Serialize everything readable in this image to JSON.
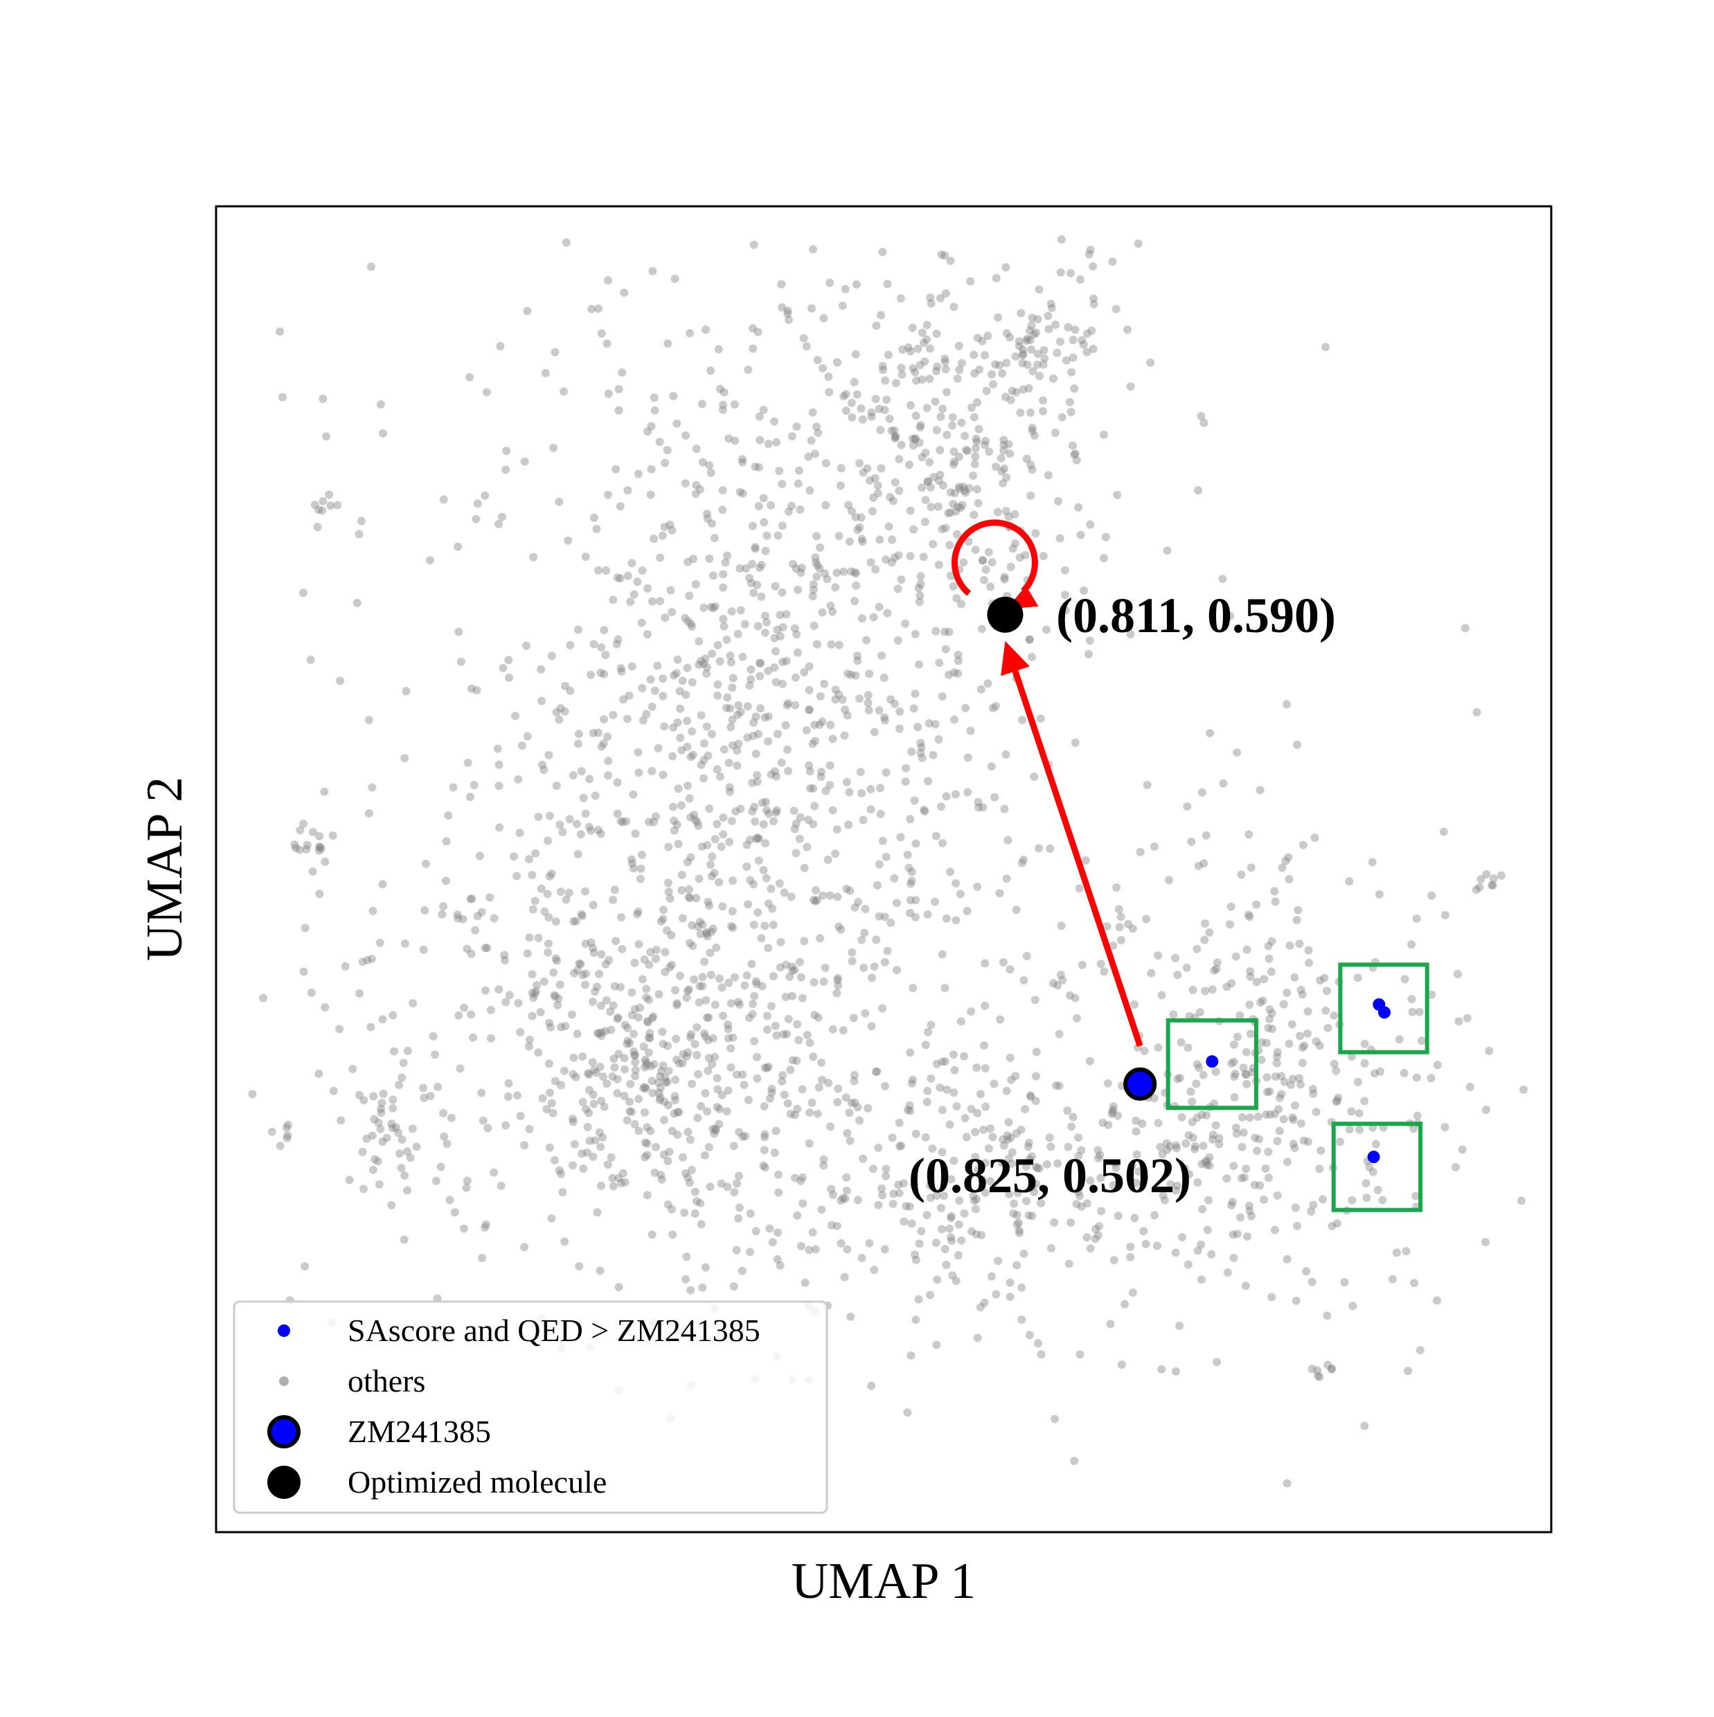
{
  "chart_data": {
    "type": "scatter",
    "title": "",
    "xlabel": "UMAP 1",
    "ylabel": "UMAP 2",
    "axis_ticks": "none",
    "grid": false,
    "legend": {
      "placement": "lower-left",
      "entries": [
        {
          "label": "SAscore and QED > ZM241385",
          "marker": "small-dot",
          "color": "#0000ff"
        },
        {
          "label": "others",
          "marker": "small-dot",
          "color": "#aaaaaa"
        },
        {
          "label": "ZM241385",
          "marker": "large-dot-outlined",
          "color": "#0000ff"
        },
        {
          "label": "Optimized molecule",
          "marker": "large-dot",
          "color": "#000000"
        }
      ]
    },
    "annotations": [
      {
        "text": "(0.811, 0.590)",
        "anchor": "Optimized molecule"
      },
      {
        "text": "(0.825, 0.502)",
        "anchor": "ZM241385"
      }
    ],
    "series": [
      {
        "name": "ZM241385",
        "color": "#0000ff",
        "edge": "#000000",
        "points": [
          [
            0.692,
            0.338
          ]
        ]
      },
      {
        "name": "Optimized molecule",
        "color": "#000000",
        "points": [
          [
            0.591,
            0.692
          ]
        ]
      },
      {
        "name": "SAscore and QED > ZM241385",
        "color": "#0000ff",
        "points": [
          [
            0.746,
            0.355
          ],
          [
            0.875,
            0.392
          ],
          [
            0.871,
            0.398
          ],
          [
            0.867,
            0.283
          ]
        ]
      }
    ],
    "highlight_boxes": [
      {
        "x0": 0.713,
        "y0": 0.32,
        "x1": 0.779,
        "y1": 0.386
      },
      {
        "x0": 0.842,
        "y0": 0.362,
        "x1": 0.907,
        "y1": 0.428
      },
      {
        "x0": 0.837,
        "y0": 0.243,
        "x1": 0.902,
        "y1": 0.308
      }
    ],
    "clusters": [
      {
        "cx": 0.41,
        "cy": 0.64,
        "sx": 0.14,
        "sy": 0.19,
        "n": 900
      },
      {
        "cx": 0.33,
        "cy": 0.37,
        "sx": 0.12,
        "sy": 0.1,
        "n": 650
      },
      {
        "cx": 0.55,
        "cy": 0.82,
        "sx": 0.08,
        "sy": 0.09,
        "n": 300
      },
      {
        "cx": 0.77,
        "cy": 0.33,
        "sx": 0.09,
        "sy": 0.1,
        "n": 420
      },
      {
        "cx": 0.57,
        "cy": 0.27,
        "sx": 0.09,
        "sy": 0.06,
        "n": 220
      },
      {
        "cx": 0.62,
        "cy": 0.9,
        "sx": 0.03,
        "sy": 0.03,
        "n": 40
      },
      {
        "cx": 0.13,
        "cy": 0.3,
        "sx": 0.02,
        "sy": 0.02,
        "n": 35
      },
      {
        "cx": 0.07,
        "cy": 0.52,
        "sx": 0.01,
        "sy": 0.01,
        "n": 15
      },
      {
        "cx": 0.08,
        "cy": 0.77,
        "sx": 0.006,
        "sy": 0.006,
        "n": 8
      },
      {
        "cx": 0.95,
        "cy": 0.49,
        "sx": 0.005,
        "sy": 0.005,
        "n": 8
      },
      {
        "cx": 0.05,
        "cy": 0.3,
        "sx": 0.004,
        "sy": 0.004,
        "n": 6
      },
      {
        "cx": 0.83,
        "cy": 0.12,
        "sx": 0.005,
        "sy": 0.005,
        "n": 7
      }
    ],
    "xlim": [
      0,
      1
    ],
    "ylim": [
      0,
      1
    ],
    "colors": {
      "others": "#808080",
      "highlight": "#0000ff",
      "optimized": "#000000",
      "arrow": "#ff0000",
      "box": "#1aa64b"
    }
  }
}
